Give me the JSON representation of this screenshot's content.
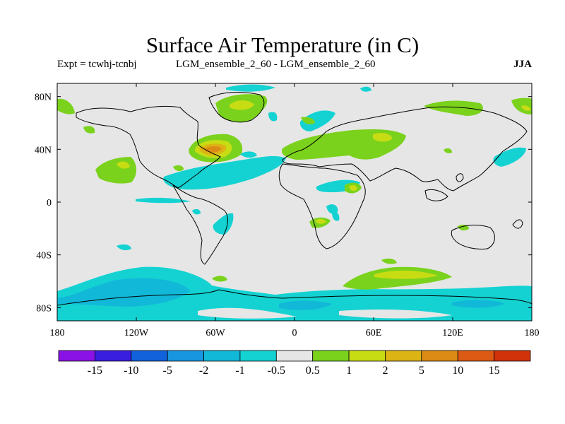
{
  "title": "Surface Air Temperature (in C)",
  "experiment_label": "Expt = tcwhj-tcnbj",
  "run_label": "LGM_ensemble_2_60 - LGM_ensemble_2_60",
  "season": "JJA",
  "map": {
    "lon_range": [
      -180,
      180
    ],
    "lat_range": [
      -90,
      90
    ],
    "lon_ticks": [
      {
        "value": -180,
        "label": "180"
      },
      {
        "value": -120,
        "label": "120W"
      },
      {
        "value": -60,
        "label": "60W"
      },
      {
        "value": 0,
        "label": "0"
      },
      {
        "value": 60,
        "label": "60E"
      },
      {
        "value": 120,
        "label": "120E"
      },
      {
        "value": 180,
        "label": "180"
      }
    ],
    "lat_ticks": [
      {
        "value": 80,
        "label": "80N"
      },
      {
        "value": 40,
        "label": "40N"
      },
      {
        "value": 0,
        "label": "0"
      },
      {
        "value": -40,
        "label": "40S"
      },
      {
        "value": -80,
        "label": "80S"
      }
    ],
    "background_color": "#e6e6e6"
  },
  "colorbar": {
    "colors": [
      "#8a12e6",
      "#3a1ee0",
      "#1262dc",
      "#1896e0",
      "#12b8d8",
      "#14d2d2",
      "#e6e6e6",
      "#7ad21c",
      "#c8dc14",
      "#dcb414",
      "#dc8c14",
      "#dc5a14",
      "#d2320a"
    ],
    "labels": [
      "-15",
      "-10",
      "-5",
      "-2",
      "-1",
      "-0.5",
      "0.5",
      "1",
      "2",
      "5",
      "10",
      "15"
    ]
  }
}
